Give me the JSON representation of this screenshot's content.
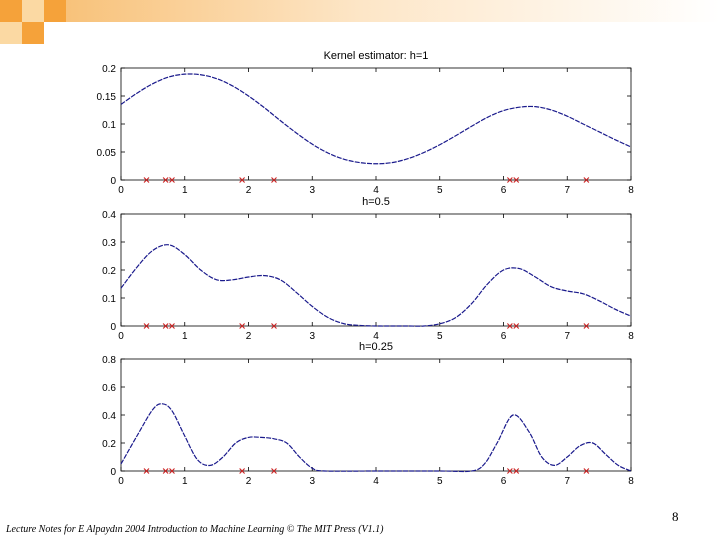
{
  "slide": {
    "page_number": "8",
    "footer": "Lecture Notes for E Alpaydın 2004 Introduction to Machine Learning © The MIT Press (V1.1)"
  },
  "colors": {
    "curve": "#1a1a8c",
    "sample_marker": "#cc2222",
    "deco_orange": "#f5a23a",
    "deco_light": "#fbd9a3"
  },
  "chart_data": [
    {
      "type": "line",
      "title": "Kernel estimator: h=1",
      "xlim": [
        0,
        8
      ],
      "ylim": [
        0,
        0.2
      ],
      "xticks": [
        0,
        1,
        2,
        3,
        4,
        5,
        6,
        7,
        8
      ],
      "yticks": [
        0,
        0.05,
        0.1,
        0.15,
        0.2
      ],
      "ytick_labels": [
        "0",
        "0.05",
        "0.1",
        "0.15",
        "0.2"
      ],
      "series": [
        {
          "x": [
            0,
            0.25,
            0.5,
            0.75,
            1,
            1.25,
            1.5,
            1.75,
            2,
            2.25,
            2.5,
            2.75,
            3,
            3.25,
            3.5,
            3.75,
            4,
            4.25,
            4.5,
            4.75,
            5,
            5.25,
            5.5,
            5.75,
            6,
            6.25,
            6.5,
            6.75,
            7,
            7.25,
            7.5,
            7.75,
            8
          ],
          "y": [
            0.135,
            0.155,
            0.172,
            0.184,
            0.189,
            0.188,
            0.181,
            0.168,
            0.15,
            0.129,
            0.106,
            0.084,
            0.064,
            0.048,
            0.037,
            0.031,
            0.029,
            0.031,
            0.038,
            0.049,
            0.063,
            0.079,
            0.096,
            0.112,
            0.124,
            0.13,
            0.131,
            0.125,
            0.114,
            0.1,
            0.086,
            0.072,
            0.059
          ]
        }
      ],
      "samples": [
        0.4,
        0.7,
        0.8,
        1.9,
        2.4,
        6.1,
        6.2,
        7.3
      ]
    },
    {
      "type": "line",
      "title": "h=0.5",
      "xlim": [
        0,
        8
      ],
      "ylim": [
        0,
        0.4
      ],
      "xticks": [
        0,
        1,
        2,
        3,
        4,
        5,
        6,
        7,
        8
      ],
      "yticks": [
        0,
        0.1,
        0.2,
        0.3,
        0.4
      ],
      "ytick_labels": [
        "0",
        "0.1",
        "0.2",
        "0.3",
        "0.4"
      ],
      "series": [
        {
          "x": [
            0,
            0.25,
            0.5,
            0.75,
            1,
            1.25,
            1.5,
            1.75,
            2,
            2.25,
            2.5,
            2.75,
            3,
            3.25,
            3.5,
            3.75,
            4,
            4.25,
            4.5,
            4.75,
            5,
            5.25,
            5.5,
            5.75,
            6,
            6.25,
            6.5,
            6.75,
            7,
            7.25,
            7.5,
            7.75,
            8
          ],
          "y": [
            0.135,
            0.21,
            0.27,
            0.29,
            0.255,
            0.2,
            0.165,
            0.165,
            0.175,
            0.18,
            0.165,
            0.12,
            0.07,
            0.03,
            0.008,
            0.002,
            0.0,
            0.0,
            0.0,
            0.0,
            0.008,
            0.03,
            0.08,
            0.15,
            0.2,
            0.205,
            0.175,
            0.14,
            0.125,
            0.115,
            0.09,
            0.06,
            0.035
          ]
        }
      ],
      "samples": [
        0.4,
        0.7,
        0.8,
        1.9,
        2.4,
        6.1,
        6.2,
        7.3
      ]
    },
    {
      "type": "line",
      "title": "h=0.25",
      "xlim": [
        0,
        8
      ],
      "ylim": [
        0,
        0.8
      ],
      "xticks": [
        0,
        1,
        2,
        3,
        4,
        5,
        6,
        7,
        8
      ],
      "yticks": [
        0,
        0.2,
        0.4,
        0.6,
        0.8
      ],
      "ytick_labels": [
        "0",
        "0.2",
        "0.4",
        "0.6",
        "0.8"
      ],
      "series": [
        {
          "x": [
            0,
            0.25,
            0.5,
            0.65,
            0.8,
            1.0,
            1.2,
            1.4,
            1.6,
            1.8,
            2.0,
            2.2,
            2.4,
            2.6,
            2.8,
            3.0,
            3.2,
            4.0,
            5.0,
            5.5,
            5.7,
            5.9,
            6.15,
            6.4,
            6.6,
            6.8,
            7.0,
            7.2,
            7.4,
            7.6,
            7.8,
            8.0
          ],
          "y": [
            0.05,
            0.25,
            0.44,
            0.48,
            0.43,
            0.25,
            0.08,
            0.04,
            0.1,
            0.2,
            0.24,
            0.24,
            0.23,
            0.2,
            0.1,
            0.02,
            0.0,
            0.0,
            0.0,
            0.0,
            0.05,
            0.2,
            0.4,
            0.28,
            0.1,
            0.04,
            0.1,
            0.18,
            0.2,
            0.12,
            0.04,
            0.0
          ]
        }
      ],
      "samples": [
        0.4,
        0.7,
        0.8,
        1.9,
        2.4,
        6.1,
        6.2,
        7.3
      ]
    }
  ]
}
